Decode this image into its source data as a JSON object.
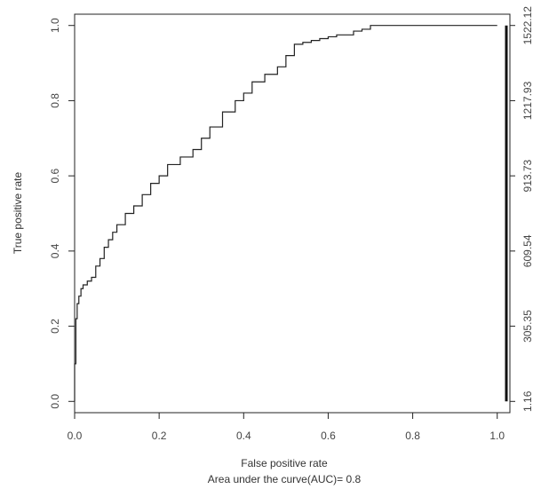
{
  "chart_data": {
    "type": "line",
    "title": "",
    "xlabel": "False positive rate",
    "subtitle": "Area under the curve(AUC)= 0.8",
    "ylabel": "True positive rate",
    "xlim": [
      0,
      1.03
    ],
    "ylim": [
      -0.03,
      1.03
    ],
    "grid": false,
    "legend": "none",
    "x_ticks": [
      "0.0",
      "0.2",
      "0.4",
      "0.6",
      "0.8",
      "1.0"
    ],
    "y_ticks": [
      "0.0",
      "0.2",
      "0.4",
      "0.6",
      "0.8",
      "1.0"
    ],
    "right_axis": {
      "label": "",
      "ticks": [
        "1.16",
        "305.35",
        "609.54",
        "913.73",
        "1217.93",
        "1522.12"
      ]
    },
    "series": [
      {
        "name": "",
        "color": "#222222",
        "x": [
          0.0,
          0.003,
          0.006,
          0.01,
          0.015,
          0.02,
          0.03,
          0.04,
          0.05,
          0.06,
          0.07,
          0.08,
          0.09,
          0.1,
          0.12,
          0.14,
          0.16,
          0.18,
          0.2,
          0.22,
          0.25,
          0.28,
          0.3,
          0.32,
          0.35,
          0.38,
          0.4,
          0.42,
          0.45,
          0.48,
          0.5,
          0.52,
          0.54,
          0.56,
          0.58,
          0.6,
          0.62,
          0.64,
          0.66,
          0.68,
          0.7,
          0.72,
          0.75,
          0.8,
          0.9,
          1.0
        ],
        "y": [
          0.0,
          0.1,
          0.22,
          0.26,
          0.28,
          0.3,
          0.31,
          0.32,
          0.33,
          0.36,
          0.38,
          0.41,
          0.43,
          0.45,
          0.47,
          0.5,
          0.52,
          0.55,
          0.58,
          0.6,
          0.63,
          0.65,
          0.67,
          0.7,
          0.73,
          0.77,
          0.8,
          0.82,
          0.85,
          0.87,
          0.89,
          0.92,
          0.95,
          0.955,
          0.96,
          0.965,
          0.97,
          0.975,
          0.975,
          0.985,
          0.99,
          1.0,
          1.0,
          1.0,
          1.0,
          1.0
        ]
      }
    ],
    "colorbar": {
      "color": "#111111"
    }
  }
}
